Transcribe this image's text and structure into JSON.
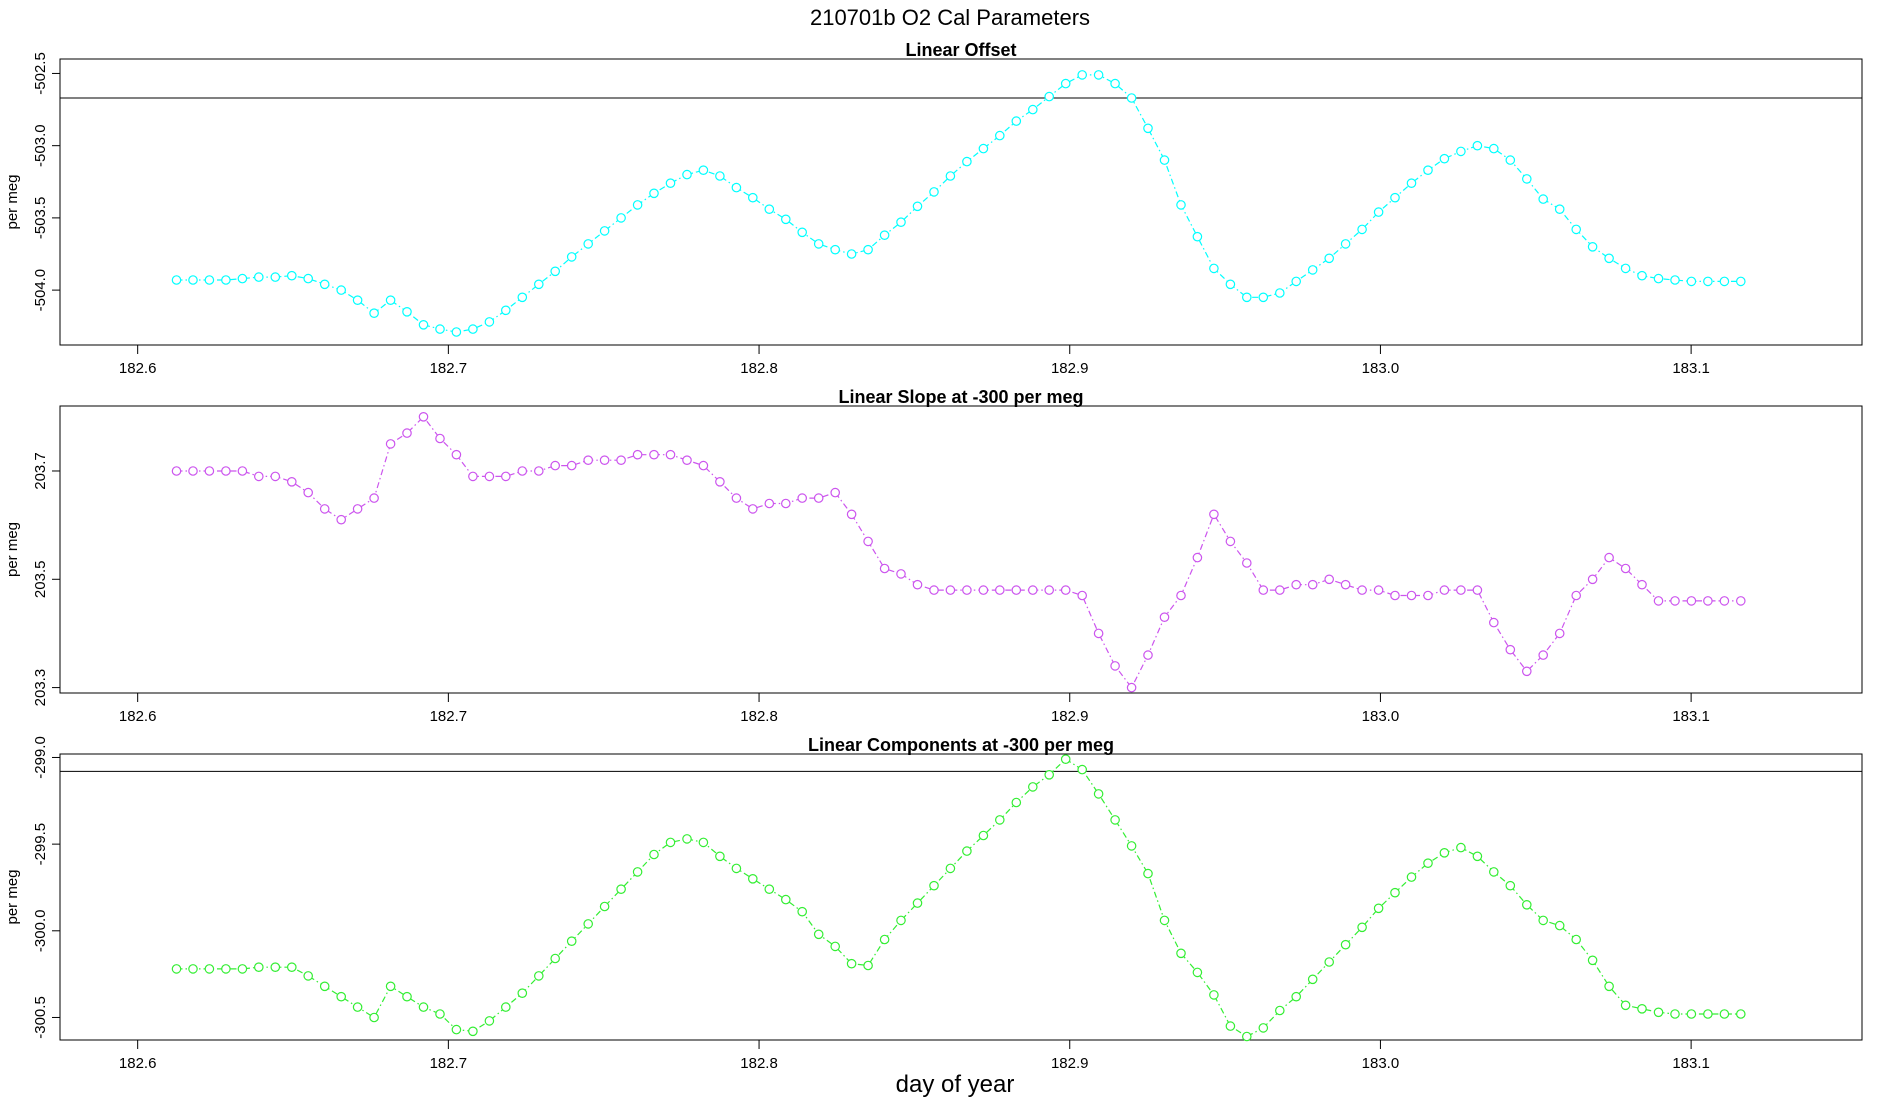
{
  "figure": {
    "title": "210701b   O2 Cal Parameters",
    "xlabel": "day of year"
  },
  "chart_data": [
    {
      "type": "line",
      "title": "Linear Offset",
      "ylabel": "per meg",
      "color": "#00FFFF",
      "line_style": "dot-dash with circle markers",
      "reference_line": -502.67,
      "xlim": [
        182.575,
        183.155
      ],
      "ylim": [
        -504.38,
        -502.4
      ],
      "xticks": [
        182.6,
        182.7,
        182.8,
        182.9,
        183.0,
        183.1
      ],
      "xtick_labels": [
        "182.6",
        "182.7",
        "182.8",
        "182.9",
        "183.0",
        "183.1"
      ],
      "yticks": [
        -504.0,
        -503.5,
        -503.0,
        -502.5
      ],
      "ytick_labels": [
        "-504.0",
        "-503.5",
        "-503.0",
        "-502.5"
      ],
      "x": [
        182.6125,
        182.6178,
        182.6231,
        182.6284,
        182.6337,
        182.639,
        182.6443,
        182.6496,
        182.6549,
        182.6602,
        182.6655,
        182.6708,
        182.6761,
        182.6814,
        182.6867,
        182.692,
        182.6973,
        182.7026,
        182.7079,
        182.7132,
        182.7185,
        182.7238,
        182.7291,
        182.7344,
        182.7397,
        182.745,
        182.7503,
        182.7556,
        182.7609,
        182.7662,
        182.7715,
        182.7768,
        182.7821,
        182.7874,
        182.7927,
        182.798,
        182.8033,
        182.8086,
        182.8139,
        182.8192,
        182.8245,
        182.8298,
        182.8351,
        182.8404,
        182.8457,
        182.851,
        182.8563,
        182.8616,
        182.8669,
        182.8722,
        182.8775,
        182.8828,
        182.8881,
        182.8934,
        182.8987,
        182.904,
        182.9093,
        182.9146,
        182.9199,
        182.9252,
        182.9305,
        182.9358,
        182.9411,
        182.9464,
        182.9517,
        182.957,
        182.9623,
        182.9676,
        182.9729,
        182.9782,
        182.9835,
        182.9888,
        182.9941,
        182.9994,
        183.0047,
        183.01,
        183.0153,
        183.0206,
        183.0259,
        183.0312,
        183.0365,
        183.0418,
        183.0471,
        183.0524,
        183.0577,
        183.063,
        183.0683,
        183.0736,
        183.0789,
        183.0842,
        183.0895,
        183.0948,
        183.1001,
        183.1054,
        183.1107,
        183.116
      ],
      "y": [
        -503.93,
        -503.93,
        -503.93,
        -503.93,
        -503.92,
        -503.91,
        -503.91,
        -503.9,
        -503.92,
        -503.96,
        -504.0,
        -504.07,
        -504.16,
        -504.07,
        -504.15,
        -504.24,
        -504.27,
        -504.29,
        -504.27,
        -504.22,
        -504.14,
        -504.05,
        -503.96,
        -503.87,
        -503.77,
        -503.68,
        -503.59,
        -503.5,
        -503.41,
        -503.33,
        -503.26,
        -503.2,
        -503.17,
        -503.21,
        -503.29,
        -503.36,
        -503.44,
        -503.51,
        -503.6,
        -503.68,
        -503.72,
        -503.75,
        -503.72,
        -503.62,
        -503.53,
        -503.42,
        -503.32,
        -503.21,
        -503.11,
        -503.02,
        -502.93,
        -502.83,
        -502.75,
        -502.66,
        -502.57,
        -502.51,
        -502.51,
        -502.57,
        -502.67,
        -502.88,
        -503.1,
        -503.41,
        -503.63,
        -503.85,
        -503.96,
        -504.05,
        -504.05,
        -504.02,
        -503.94,
        -503.86,
        -503.78,
        -503.68,
        -503.58,
        -503.46,
        -503.36,
        -503.26,
        -503.17,
        -503.09,
        -503.04,
        -503.0,
        -503.02,
        -503.1,
        -503.23,
        -503.37,
        -503.44,
        -503.58,
        -503.7,
        -503.78,
        -503.85,
        -503.9,
        -503.92,
        -503.93,
        -503.94,
        -503.94,
        -503.94,
        -503.94
      ]
    },
    {
      "type": "line",
      "title": "Linear Slope at -300 per meg",
      "ylabel": "per meg",
      "color": "#CC55EE",
      "line_style": "dot-dash with circle markers",
      "xlim": [
        182.575,
        183.155
      ],
      "ylim": [
        203.29,
        203.82
      ],
      "xticks": [
        182.6,
        182.7,
        182.8,
        182.9,
        183.0,
        183.1
      ],
      "xtick_labels": [
        "182.6",
        "182.7",
        "182.8",
        "182.9",
        "183.0",
        "183.1"
      ],
      "yticks": [
        203.3,
        203.5,
        203.7
      ],
      "ytick_labels": [
        "203.3",
        "203.5",
        "203.7"
      ],
      "x": [
        182.6125,
        182.6178,
        182.6231,
        182.6284,
        182.6337,
        182.639,
        182.6443,
        182.6496,
        182.6549,
        182.6602,
        182.6655,
        182.6708,
        182.6761,
        182.6814,
        182.6867,
        182.692,
        182.6973,
        182.7026,
        182.7079,
        182.7132,
        182.7185,
        182.7238,
        182.7291,
        182.7344,
        182.7397,
        182.745,
        182.7503,
        182.7556,
        182.7609,
        182.7662,
        182.7715,
        182.7768,
        182.7821,
        182.7874,
        182.7927,
        182.798,
        182.8033,
        182.8086,
        182.8139,
        182.8192,
        182.8245,
        182.8298,
        182.8351,
        182.8404,
        182.8457,
        182.851,
        182.8563,
        182.8616,
        182.8669,
        182.8722,
        182.8775,
        182.8828,
        182.8881,
        182.8934,
        182.8987,
        182.904,
        182.9093,
        182.9146,
        182.9199,
        182.9252,
        182.9305,
        182.9358,
        182.9411,
        182.9464,
        182.9517,
        182.957,
        182.9623,
        182.9676,
        182.9729,
        182.9782,
        182.9835,
        182.9888,
        182.9941,
        182.9994,
        183.0047,
        183.01,
        183.0153,
        183.0206,
        183.0259,
        183.0312,
        183.0365,
        183.0418,
        183.0471,
        183.0524,
        183.0577,
        183.063,
        183.0683,
        183.0736,
        183.0789,
        183.0842,
        183.0895,
        183.0948,
        183.1001,
        183.1054,
        183.1107,
        183.116
      ],
      "y": [
        203.7,
        203.7,
        203.7,
        203.7,
        203.7,
        203.69,
        203.69,
        203.68,
        203.66,
        203.63,
        203.61,
        203.63,
        203.65,
        203.75,
        203.77,
        203.8,
        203.76,
        203.73,
        203.69,
        203.69,
        203.69,
        203.7,
        203.7,
        203.71,
        203.71,
        203.72,
        203.72,
        203.72,
        203.73,
        203.73,
        203.73,
        203.72,
        203.71,
        203.68,
        203.65,
        203.63,
        203.64,
        203.64,
        203.65,
        203.65,
        203.66,
        203.62,
        203.57,
        203.52,
        203.51,
        203.49,
        203.48,
        203.48,
        203.48,
        203.48,
        203.48,
        203.48,
        203.48,
        203.48,
        203.48,
        203.47,
        203.4,
        203.34,
        203.3,
        203.36,
        203.43,
        203.47,
        203.54,
        203.62,
        203.57,
        203.53,
        203.48,
        203.48,
        203.49,
        203.49,
        203.5,
        203.49,
        203.48,
        203.48,
        203.47,
        203.47,
        203.47,
        203.48,
        203.48,
        203.48,
        203.42,
        203.37,
        203.33,
        203.36,
        203.4,
        203.47,
        203.5,
        203.54,
        203.52,
        203.49,
        203.46,
        203.46,
        203.46,
        203.46,
        203.46,
        203.46
      ]
    },
    {
      "type": "line",
      "title": "Linear Components at -300 per meg",
      "ylabel": "per meg",
      "color": "#33EE33",
      "line_style": "dot-dash with circle markers",
      "reference_line": -299.08,
      "xlim": [
        182.575,
        183.155
      ],
      "ylim": [
        -300.63,
        -298.98
      ],
      "xticks": [
        182.6,
        182.7,
        182.8,
        182.9,
        183.0,
        183.1
      ],
      "xtick_labels": [
        "182.6",
        "182.7",
        "182.8",
        "182.9",
        "183.0",
        "183.1"
      ],
      "yticks": [
        -300.5,
        -300.0,
        -299.5,
        -299.0
      ],
      "ytick_labels": [
        "-300.5",
        "-300.0",
        "-299.5",
        "-299.0"
      ],
      "x": [
        182.6125,
        182.6178,
        182.6231,
        182.6284,
        182.6337,
        182.639,
        182.6443,
        182.6496,
        182.6549,
        182.6602,
        182.6655,
        182.6708,
        182.6761,
        182.6814,
        182.6867,
        182.692,
        182.6973,
        182.7026,
        182.7079,
        182.7132,
        182.7185,
        182.7238,
        182.7291,
        182.7344,
        182.7397,
        182.745,
        182.7503,
        182.7556,
        182.7609,
        182.7662,
        182.7715,
        182.7768,
        182.7821,
        182.7874,
        182.7927,
        182.798,
        182.8033,
        182.8086,
        182.8139,
        182.8192,
        182.8245,
        182.8298,
        182.8351,
        182.8404,
        182.8457,
        182.851,
        182.8563,
        182.8616,
        182.8669,
        182.8722,
        182.8775,
        182.8828,
        182.8881,
        182.8934,
        182.8987,
        182.904,
        182.9093,
        182.9146,
        182.9199,
        182.9252,
        182.9305,
        182.9358,
        182.9411,
        182.9464,
        182.9517,
        182.957,
        182.9623,
        182.9676,
        182.9729,
        182.9782,
        182.9835,
        182.9888,
        182.9941,
        182.9994,
        183.0047,
        183.01,
        183.0153,
        183.0206,
        183.0259,
        183.0312,
        183.0365,
        183.0418,
        183.0471,
        183.0524,
        183.0577,
        183.063,
        183.0683,
        183.0736,
        183.0789,
        183.0842,
        183.0895,
        183.0948,
        183.1001,
        183.1054,
        183.1107,
        183.116
      ],
      "y": [
        -300.22,
        -300.22,
        -300.22,
        -300.22,
        -300.22,
        -300.21,
        -300.21,
        -300.21,
        -300.26,
        -300.32,
        -300.38,
        -300.44,
        -300.5,
        -300.32,
        -300.38,
        -300.44,
        -300.48,
        -300.57,
        -300.58,
        -300.52,
        -300.44,
        -300.36,
        -300.26,
        -300.16,
        -300.06,
        -299.96,
        -299.86,
        -299.76,
        -299.66,
        -299.56,
        -299.49,
        -299.47,
        -299.49,
        -299.57,
        -299.64,
        -299.7,
        -299.76,
        -299.82,
        -299.89,
        -300.02,
        -300.09,
        -300.19,
        -300.2,
        -300.05,
        -299.94,
        -299.84,
        -299.74,
        -299.64,
        -299.54,
        -299.45,
        -299.36,
        -299.26,
        -299.17,
        -299.1,
        -299.01,
        -299.07,
        -299.21,
        -299.36,
        -299.51,
        -299.67,
        -299.94,
        -300.13,
        -300.24,
        -300.37,
        -300.55,
        -300.61,
        -300.56,
        -300.46,
        -300.38,
        -300.28,
        -300.18,
        -300.08,
        -299.98,
        -299.87,
        -299.78,
        -299.69,
        -299.61,
        -299.55,
        -299.52,
        -299.57,
        -299.66,
        -299.74,
        -299.85,
        -299.94,
        -299.97,
        -300.05,
        -300.17,
        -300.32,
        -300.43,
        -300.45,
        -300.47,
        -300.48,
        -300.48,
        -300.48,
        -300.48,
        -300.48
      ]
    }
  ]
}
